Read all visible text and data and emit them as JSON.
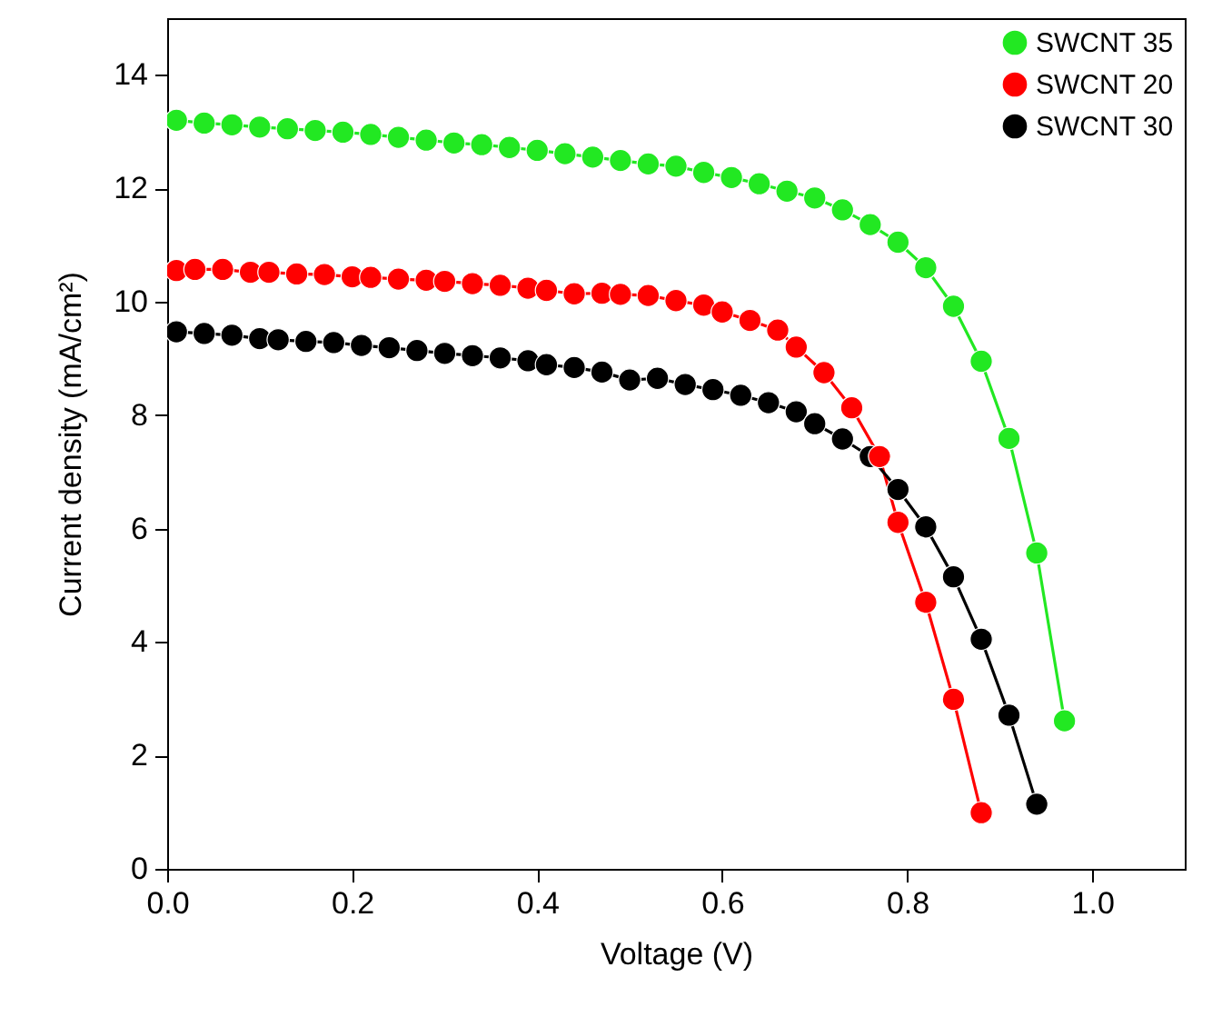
{
  "chart_data": {
    "type": "line",
    "xlabel": "Voltage (V)",
    "ylabel": "Current density (mA/cm²)",
    "xlim": [
      0,
      1.1
    ],
    "xticks": [
      {
        "value": 0,
        "label": "0.0"
      },
      0.2,
      0.4,
      0.6,
      0.8,
      {
        "value": 1,
        "label": "1.0"
      }
    ],
    "ylim": [
      0,
      15
    ],
    "yticks": [
      0,
      2,
      4,
      6,
      8,
      10,
      12,
      14
    ],
    "grid": false,
    "legend": "top right",
    "marker": "circle",
    "line_style": "solid",
    "series": [
      {
        "name": "SWCNT 35",
        "color": "#22e822",
        "x": [
          0.01,
          0.04,
          0.07,
          0.1,
          0.13,
          0.16,
          0.19,
          0.22,
          0.25,
          0.28,
          0.31,
          0.34,
          0.37,
          0.4,
          0.43,
          0.46,
          0.49,
          0.52,
          0.55,
          0.58,
          0.61,
          0.64,
          0.67,
          0.7,
          0.73,
          0.76,
          0.79,
          0.82,
          0.85,
          0.88,
          0.91,
          0.94,
          0.97
        ],
        "values": [
          13.2,
          13.15,
          13.12,
          13.08,
          13.05,
          13.02,
          12.99,
          12.95,
          12.9,
          12.85,
          12.8,
          12.77,
          12.72,
          12.67,
          12.61,
          12.55,
          12.49,
          12.43,
          12.39,
          12.28,
          12.19,
          12.08,
          11.95,
          11.83,
          11.62,
          11.36,
          11.05,
          10.6,
          9.92,
          8.95,
          7.59,
          5.57,
          2.61
        ]
      },
      {
        "name": "SWCNT 20",
        "color": "#ff0000",
        "x": [
          0.01,
          0.03,
          0.06,
          0.09,
          0.11,
          0.14,
          0.17,
          0.2,
          0.22,
          0.25,
          0.28,
          0.3,
          0.33,
          0.36,
          0.39,
          0.41,
          0.44,
          0.47,
          0.49,
          0.52,
          0.55,
          0.58,
          0.6,
          0.63,
          0.66,
          0.68,
          0.71,
          0.74,
          0.77,
          0.79,
          0.82,
          0.85,
          0.88
        ],
        "values": [
          10.55,
          10.57,
          10.57,
          10.52,
          10.52,
          10.49,
          10.48,
          10.44,
          10.43,
          10.4,
          10.38,
          10.36,
          10.32,
          10.29,
          10.24,
          10.2,
          10.14,
          10.15,
          10.13,
          10.11,
          10.02,
          9.94,
          9.82,
          9.67,
          9.5,
          9.2,
          8.75,
          8.13,
          7.27,
          6.11,
          4.7,
          2.99,
          0.99
        ]
      },
      {
        "name": "SWCNT 30",
        "color": "#000000",
        "x": [
          0.01,
          0.04,
          0.07,
          0.1,
          0.12,
          0.15,
          0.18,
          0.21,
          0.24,
          0.27,
          0.3,
          0.33,
          0.36,
          0.39,
          0.41,
          0.44,
          0.47,
          0.5,
          0.53,
          0.56,
          0.59,
          0.62,
          0.65,
          0.68,
          0.7,
          0.73,
          0.76,
          0.79,
          0.82,
          0.85,
          0.88,
          0.91,
          0.94
        ],
        "values": [
          9.47,
          9.44,
          9.41,
          9.35,
          9.33,
          9.3,
          9.28,
          9.23,
          9.19,
          9.14,
          9.09,
          9.05,
          9.01,
          8.96,
          8.89,
          8.84,
          8.76,
          8.62,
          8.65,
          8.54,
          8.45,
          8.35,
          8.22,
          8.06,
          7.85,
          7.58,
          7.27,
          6.69,
          6.03,
          5.15,
          4.05,
          2.71,
          1.14
        ]
      }
    ]
  }
}
